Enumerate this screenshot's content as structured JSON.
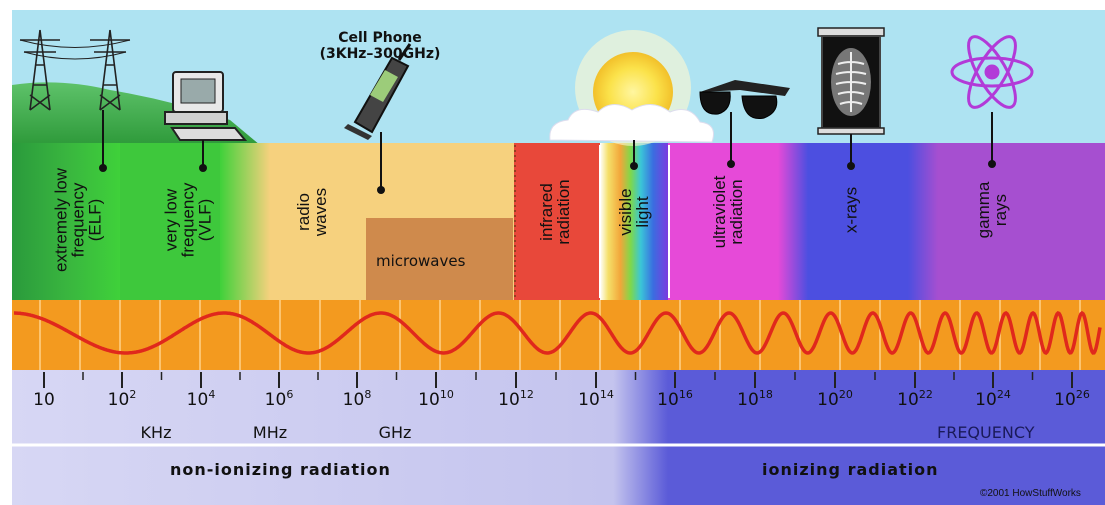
{
  "title": {
    "line1": "Cell Phone",
    "line2": "(3KHz–300GHz)"
  },
  "bands": [
    {
      "key": "elf",
      "lines": [
        "extremely low",
        "frequency",
        "(ELF)"
      ]
    },
    {
      "key": "vlf",
      "lines": [
        "very low",
        "frequency",
        "(VLF)"
      ]
    },
    {
      "key": "radio",
      "lines": [
        "radio",
        "waves"
      ]
    },
    {
      "key": "infrared",
      "lines": [
        "infrared",
        "radiation"
      ]
    },
    {
      "key": "visible",
      "lines": [
        "visible",
        "light"
      ]
    },
    {
      "key": "ultraviolet",
      "lines": [
        "ultraviolet",
        "radiation"
      ]
    },
    {
      "key": "xrays",
      "lines": [
        "x-rays"
      ]
    },
    {
      "key": "gamma",
      "lines": [
        "gamma",
        "rays"
      ]
    }
  ],
  "microwaves_label": "microwaves",
  "ticks": [
    {
      "base": "10",
      "exp": ""
    },
    {
      "base": "10",
      "exp": "2"
    },
    {
      "base": "10",
      "exp": "4"
    },
    {
      "base": "10",
      "exp": "6"
    },
    {
      "base": "10",
      "exp": "8"
    },
    {
      "base": "10",
      "exp": "10"
    },
    {
      "base": "10",
      "exp": "12"
    },
    {
      "base": "10",
      "exp": "14"
    },
    {
      "base": "10",
      "exp": "16"
    },
    {
      "base": "10",
      "exp": "18"
    },
    {
      "base": "10",
      "exp": "20"
    },
    {
      "base": "10",
      "exp": "22"
    },
    {
      "base": "10",
      "exp": "24"
    },
    {
      "base": "10",
      "exp": "26"
    }
  ],
  "units": [
    "KHz",
    "MHz",
    "GHz"
  ],
  "frequency_label": "FREQUENCY",
  "non_ionizing_label": "non-ionizing radiation",
  "ionizing_label": "ionizing radiation",
  "copyright": "©2001 HowStuffWorks",
  "icons": [
    "power-tower-icon",
    "computer-icon",
    "cell-phone-icon",
    "sun-icon",
    "sunglasses-icon",
    "xray-film-icon",
    "atom-icon"
  ],
  "colors": {
    "sky": "#aee3f2",
    "elf": "#2e9a3a",
    "vlf": "#33c23a",
    "radio": "#f6d17e",
    "microwaves": "#cf8a4c",
    "infrared": "#e8483a",
    "ultraviolet": "#e64ad8",
    "xrays": "#4c4fe0",
    "gamma": "#a64fd0",
    "wave_strip": "#f39a1f",
    "wave": "#e0281c",
    "non_ionizing": "#c8c8ef",
    "ionizing": "#5b5bd8"
  }
}
